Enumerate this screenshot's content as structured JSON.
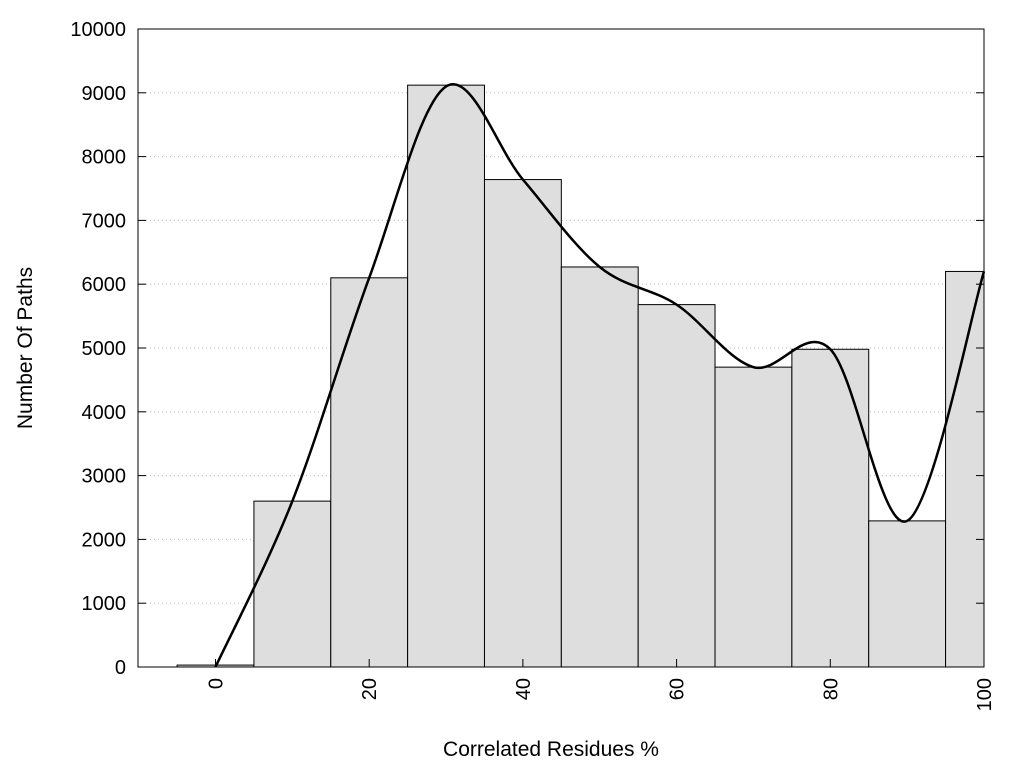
{
  "chart_data": {
    "type": "bar",
    "title": "",
    "xlabel": "Correlated Residues %",
    "ylabel": "Number Of Paths",
    "xlim": [
      -10,
      100
    ],
    "ylim": [
      0,
      10000
    ],
    "grid": {
      "y": true,
      "x": false,
      "style": "dotted"
    },
    "x_ticks": [
      0,
      20,
      40,
      60,
      80,
      100
    ],
    "x_tick_labels": [
      "0",
      "20",
      "40",
      "60",
      "80",
      "100"
    ],
    "y_ticks": [
      0,
      1000,
      2000,
      3000,
      4000,
      5000,
      6000,
      7000,
      8000,
      9000,
      10000
    ],
    "y_tick_labels": [
      "0",
      "1000",
      "2000",
      "3000",
      "4000",
      "5000",
      "6000",
      "7000",
      "8000",
      "9000",
      "10000"
    ],
    "bin_width": 10,
    "categories": [
      0,
      10,
      20,
      30,
      40,
      50,
      60,
      70,
      80,
      90,
      100
    ],
    "values": [
      30,
      2600,
      6100,
      9120,
      7640,
      6270,
      5680,
      4700,
      4980,
      2290,
      6200
    ],
    "bar_color": "#dedede",
    "bar_stroke": "#000000",
    "curve": {
      "type": "line",
      "smooth": true,
      "color": "#000000",
      "x": [
        0,
        10,
        20,
        30,
        40,
        50,
        60,
        70,
        80,
        90,
        100
      ],
      "y": [
        0,
        2600,
        6100,
        9100,
        7640,
        6270,
        5680,
        4700,
        4980,
        2290,
        6200
      ]
    }
  }
}
